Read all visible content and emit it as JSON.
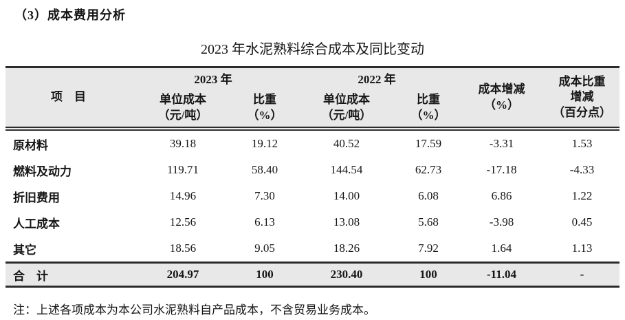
{
  "page": {
    "heading": "（3）成本费用分析",
    "table_title": "2023 年水泥熟料综合成本及同比变动",
    "note": "注：上述各项成本为本公司水泥熟料自产品成本，不含贸易业务成本。"
  },
  "table": {
    "header": {
      "item": "项　目",
      "group_2023": "2023 年",
      "group_2022": "2022 年",
      "unit_cost_line1": "单位成本",
      "unit_cost_line2": "（元/吨）",
      "ratio_line1": "比重",
      "ratio_line2": "（%）",
      "cost_change_line1": "成本增减",
      "cost_change_line2": "（%）",
      "ratio_change_line1": "成本比重",
      "ratio_change_line2": "增减",
      "ratio_change_line3": "（百分点）"
    },
    "rows": [
      {
        "item": "原材料",
        "cost_2023": "39.18",
        "ratio_2023": "19.12",
        "cost_2022": "40.52",
        "ratio_2022": "17.59",
        "cost_change": "-3.31",
        "ratio_change": "1.53"
      },
      {
        "item": "燃料及动力",
        "cost_2023": "119.71",
        "ratio_2023": "58.40",
        "cost_2022": "144.54",
        "ratio_2022": "62.73",
        "cost_change": "-17.18",
        "ratio_change": "-4.33"
      },
      {
        "item": "折旧费用",
        "cost_2023": "14.96",
        "ratio_2023": "7.30",
        "cost_2022": "14.00",
        "ratio_2022": "6.08",
        "cost_change": "6.86",
        "ratio_change": "1.22"
      },
      {
        "item": "人工成本",
        "cost_2023": "12.56",
        "ratio_2023": "6.13",
        "cost_2022": "13.08",
        "ratio_2022": "5.68",
        "cost_change": "-3.98",
        "ratio_change": "0.45"
      },
      {
        "item": "其它",
        "cost_2023": "18.56",
        "ratio_2023": "9.05",
        "cost_2022": "18.26",
        "ratio_2022": "7.92",
        "cost_change": "1.64",
        "ratio_change": "1.13"
      }
    ],
    "total": {
      "item": "合　计",
      "cost_2023": "204.97",
      "ratio_2023": "100",
      "cost_2022": "230.40",
      "ratio_2022": "100",
      "cost_change": "-11.04",
      "ratio_change": "-"
    }
  },
  "colors": {
    "header_bg": "#e8e8e8",
    "border": "#2b2b2b",
    "text": "#161616",
    "page_bg": "#ffffff"
  }
}
